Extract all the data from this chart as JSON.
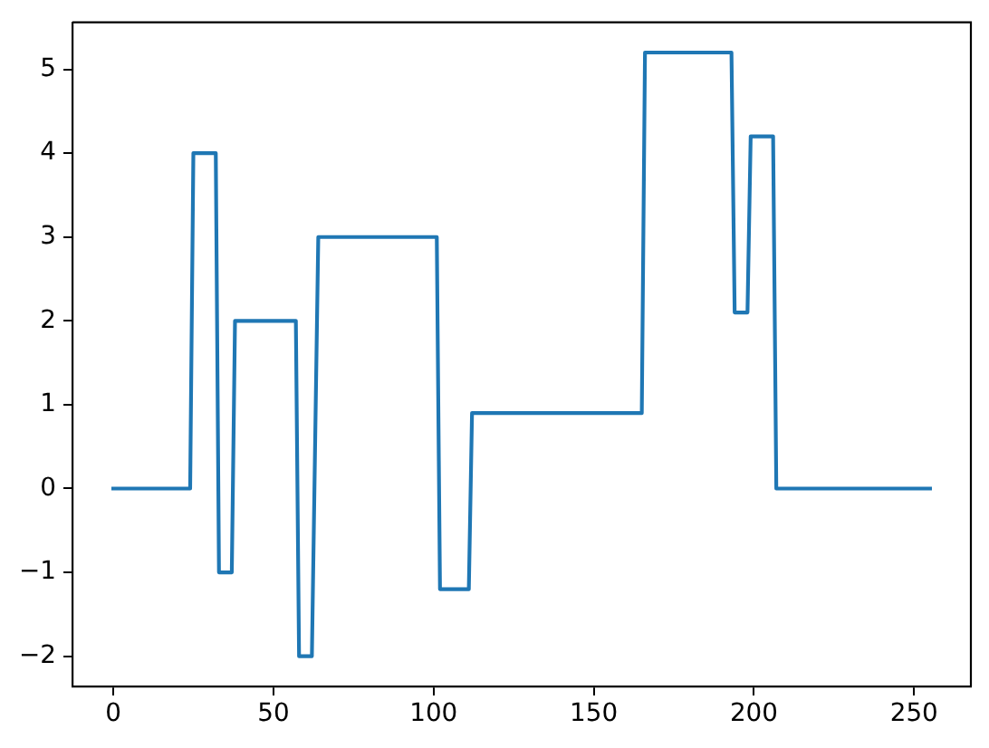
{
  "chart_data": {
    "type": "line",
    "color": "#1f77b4",
    "x": [
      0,
      24,
      25,
      32,
      33,
      37,
      38,
      57,
      58,
      62,
      64,
      101,
      102,
      111,
      112,
      165,
      166,
      193,
      194,
      198,
      199,
      206,
      207,
      255
    ],
    "values": [
      0,
      0,
      4,
      4,
      -1,
      -1,
      2,
      2,
      -2,
      -2,
      3,
      3,
      -1.2,
      -1.2,
      0.9,
      0.9,
      5.2,
      5.2,
      2.1,
      2.1,
      4.2,
      4.2,
      0,
      0
    ],
    "xlim": [
      -12.75,
      267.75
    ],
    "ylim": [
      -2.36,
      5.56
    ],
    "xticks": [
      0,
      50,
      100,
      150,
      200,
      250
    ],
    "yticks": [
      {
        "value": -2,
        "label": "−2"
      },
      {
        "value": -1,
        "label": "−1"
      },
      0,
      1,
      2,
      3,
      4,
      5
    ]
  }
}
